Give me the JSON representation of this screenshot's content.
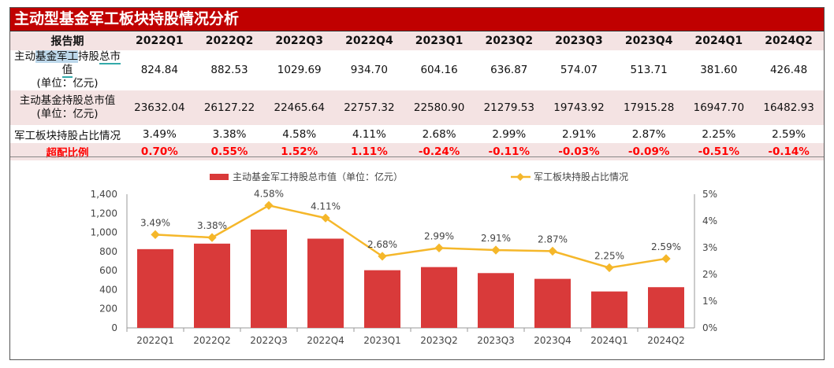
{
  "title": "主动型基金军工板块持股情况分析",
  "table": {
    "header_label": "报告期",
    "periods": [
      "2022Q1",
      "2022Q2",
      "2022Q3",
      "2022Q4",
      "2023Q1",
      "2023Q2",
      "2023Q3",
      "2023Q4",
      "2024Q1",
      "2024Q2"
    ],
    "rows": [
      {
        "label_a": "主动",
        "label_b": "基金军工",
        "label_c": "持股",
        "label_d": "总市值",
        "label2": "(单位：亿元)",
        "values": [
          "824.84",
          "882.53",
          "1029.69",
          "934.70",
          "604.16",
          "636.87",
          "574.07",
          "513.71",
          "381.60",
          "426.48"
        ]
      },
      {
        "label": "主动基金持股总市值",
        "label2": "(单位：亿元)",
        "values": [
          "23632.04",
          "26127.22",
          "22465.64",
          "22757.32",
          "22580.90",
          "21279.53",
          "19743.92",
          "17915.28",
          "16947.70",
          "16482.93"
        ]
      },
      {
        "label": "军工板块持股占比情况",
        "values": [
          "3.49%",
          "3.38%",
          "4.58%",
          "4.11%",
          "2.68%",
          "2.99%",
          "2.91%",
          "2.87%",
          "2.25%",
          "2.59%"
        ]
      },
      {
        "label": "超配比例",
        "values": [
          "0.70%",
          "0.55%",
          "1.52%",
          "1.11%",
          "-0.24%",
          "-0.11%",
          "-0.03%",
          "-0.09%",
          "-0.51%",
          "-0.14%"
        ]
      }
    ]
  },
  "chart_data": {
    "type": "bar+line",
    "categories": [
      "2022Q1",
      "2022Q2",
      "2022Q3",
      "2022Q4",
      "2023Q1",
      "2023Q2",
      "2023Q3",
      "2023Q4",
      "2024Q1",
      "2024Q2"
    ],
    "series": [
      {
        "name": "主动基金军工持股总市值（单位：亿元）",
        "type": "bar",
        "axis": "left",
        "color": "#d93a3a",
        "values": [
          824.84,
          882.53,
          1029.69,
          934.7,
          604.16,
          636.87,
          574.07,
          513.71,
          381.6,
          426.48
        ]
      },
      {
        "name": "军工板块持股占比情况",
        "type": "line",
        "axis": "right",
        "color": "#f5b72a",
        "values": [
          3.49,
          3.38,
          4.58,
          4.11,
          2.68,
          2.99,
          2.91,
          2.87,
          2.25,
          2.59
        ],
        "labels": [
          "3.49%",
          "3.38%",
          "4.58%",
          "4.11%",
          "2.68%",
          "2.99%",
          "2.91%",
          "2.87%",
          "2.25%",
          "2.59%"
        ]
      }
    ],
    "left_ylim": [
      0,
      1400
    ],
    "left_ticks": [
      "0",
      "200",
      "400",
      "600",
      "800",
      "1,000",
      "1,200",
      "1,400"
    ],
    "right_ylim": [
      0,
      5
    ],
    "right_ticks": [
      "0%",
      "1%",
      "2%",
      "3%",
      "4%",
      "5%"
    ],
    "legend": "top",
    "grid": false
  }
}
